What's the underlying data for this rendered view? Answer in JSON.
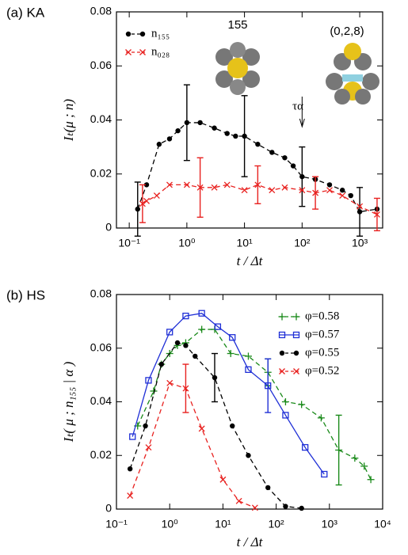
{
  "chart_data": [
    {
      "type": "line",
      "panel_label": "(a) KA",
      "xlabel": "t / Δt",
      "ylabel": "Iₜ(μ ; n)",
      "log_x": true,
      "legend": "upper left",
      "annotations": [
        "155",
        "(0,2,8)",
        "τα"
      ],
      "xlim": [
        0.06,
        2500
      ],
      "xticks": [
        {
          "value": 0.1,
          "label": "10⁻¹"
        },
        {
          "value": 1,
          "label": "10⁰"
        },
        {
          "value": 10,
          "label": "10¹"
        },
        {
          "value": 100,
          "label": "10²"
        },
        {
          "value": 1000,
          "label": "10³"
        }
      ],
      "ylim": [
        0,
        0.08
      ],
      "yticks": [
        0,
        0.02,
        0.04,
        0.06,
        0.08
      ],
      "series": [
        {
          "name": "n₁₅₅",
          "color": "#000000",
          "marker": "circle",
          "linestyle": "dashed",
          "x": [
            0.14,
            0.2,
            0.33,
            0.5,
            0.7,
            1.0,
            1.7,
            3,
            5,
            7,
            10,
            17,
            30,
            50,
            70,
            100,
            170,
            300,
            500,
            700,
            1000,
            2000
          ],
          "values": [
            0.007,
            0.016,
            0.031,
            0.033,
            0.036,
            0.039,
            0.039,
            0.037,
            0.035,
            0.034,
            0.034,
            0.031,
            0.028,
            0.026,
            0.023,
            0.019,
            0.018,
            0.016,
            0.014,
            0.012,
            0.006,
            0.007
          ],
          "errors": [
            0.01,
            null,
            null,
            null,
            null,
            0.014,
            null,
            null,
            null,
            null,
            0.015,
            null,
            null,
            null,
            null,
            0.011,
            null,
            null,
            null,
            null,
            0.009,
            null
          ]
        },
        {
          "name": "n₀₂₈",
          "color": "#e8211f",
          "marker": "x",
          "linestyle": "dashed",
          "x": [
            0.17,
            0.2,
            0.3,
            0.5,
            1,
            1.7,
            3,
            5,
            10,
            17,
            30,
            50,
            100,
            170,
            300,
            500,
            1000,
            2000
          ],
          "values": [
            0.009,
            0.01,
            0.012,
            0.016,
            0.016,
            0.015,
            0.015,
            0.016,
            0.014,
            0.016,
            0.014,
            0.015,
            0.014,
            0.013,
            0.014,
            0.012,
            0.008,
            0.005
          ],
          "errors": [
            0.007,
            null,
            null,
            null,
            null,
            0.011,
            null,
            null,
            null,
            0.007,
            null,
            null,
            null,
            0.006,
            null,
            null,
            null,
            0.006
          ]
        }
      ]
    },
    {
      "type": "line",
      "panel_label": "(b) HS",
      "xlabel": "t / Δt",
      "ylabel": "Iₜ( μ ; n₁₅₅ | α )",
      "log_x": true,
      "legend": "upper right",
      "xlim": [
        0.1,
        10000
      ],
      "xticks": [
        {
          "value": 0.1,
          "label": "10⁻¹"
        },
        {
          "value": 1,
          "label": "10⁰"
        },
        {
          "value": 10,
          "label": "10¹"
        },
        {
          "value": 100,
          "label": "10²"
        },
        {
          "value": 1000,
          "label": "10³"
        },
        {
          "value": 10000,
          "label": "10⁴"
        }
      ],
      "ylim": [
        0,
        0.08
      ],
      "yticks": [
        0,
        0.02,
        0.04,
        0.06,
        0.08
      ],
      "series": [
        {
          "name": "φ=0.58",
          "color": "#1a8a1a",
          "marker": "plus",
          "linestyle": "dashed",
          "x": [
            0.25,
            0.5,
            0.7,
            1.0,
            1.4,
            2,
            4,
            7,
            14,
            30,
            70,
            150,
            300,
            700,
            1500,
            3000,
            4500,
            6000
          ],
          "values": [
            0.031,
            0.044,
            0.054,
            0.058,
            0.061,
            0.062,
            0.067,
            0.067,
            0.058,
            0.057,
            0.051,
            0.04,
            0.039,
            0.034,
            0.022,
            0.019,
            0.016,
            0.011
          ],
          "errors": [
            null,
            null,
            null,
            null,
            null,
            null,
            null,
            null,
            null,
            null,
            0.005,
            null,
            null,
            null,
            0.013,
            null,
            null,
            null
          ]
        },
        {
          "name": "φ=0.57",
          "color": "#1f2fd6",
          "marker": "square",
          "linestyle": "solid",
          "x": [
            0.2,
            0.4,
            1.0,
            2,
            4,
            8,
            15,
            30,
            70,
            150,
            350,
            800
          ],
          "values": [
            0.027,
            0.048,
            0.066,
            0.072,
            0.073,
            0.068,
            0.064,
            0.052,
            0.046,
            0.035,
            0.023,
            0.013
          ],
          "errors": [
            null,
            null,
            null,
            null,
            null,
            null,
            null,
            null,
            0.01,
            null,
            null,
            null
          ]
        },
        {
          "name": "φ=0.55",
          "color": "#000000",
          "marker": "circle",
          "linestyle": "dashed",
          "x": [
            0.18,
            0.35,
            0.7,
            1.4,
            2,
            3,
            7,
            15,
            30,
            70,
            150,
            300
          ],
          "values": [
            0.015,
            0.031,
            0.054,
            0.062,
            0.061,
            0.057,
            0.049,
            0.031,
            0.02,
            0.008,
            0.001,
            0.0003
          ],
          "errors": [
            null,
            null,
            null,
            null,
            null,
            null,
            0.009,
            null,
            null,
            null,
            null,
            null
          ]
        },
        {
          "name": "φ=0.52",
          "color": "#e8211f",
          "marker": "x",
          "linestyle": "dashed",
          "x": [
            0.18,
            0.4,
            1.0,
            2,
            4,
            10,
            20,
            40
          ],
          "values": [
            0.005,
            0.023,
            0.047,
            0.045,
            0.03,
            0.011,
            0.003,
            0.0005
          ],
          "errors": [
            null,
            null,
            null,
            0.009,
            null,
            null,
            null,
            null
          ]
        }
      ]
    }
  ]
}
